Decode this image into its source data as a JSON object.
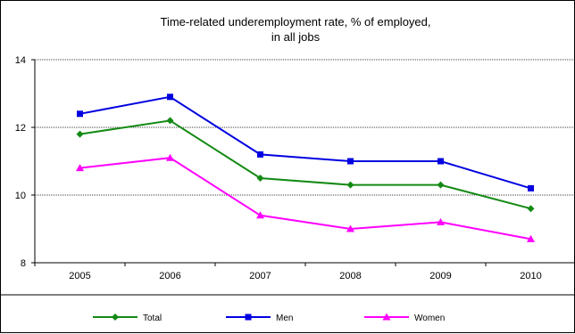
{
  "chart_data": {
    "type": "line",
    "title_lines": [
      "Time-related underemployment rate, %  of  employed,",
      "in all jobs"
    ],
    "xlabel": "",
    "ylabel": "",
    "categories": [
      "2005",
      "2006",
      "2007",
      "2008",
      "2009",
      "2010"
    ],
    "ylim": [
      8,
      14
    ],
    "yticks": [
      8,
      10,
      12,
      14
    ],
    "ytick_labels": [
      "8",
      "10",
      "12",
      "14"
    ],
    "grid": "horizontal dotted",
    "legend_position": "bottom",
    "series": [
      {
        "name": "Total",
        "color": "#138a13",
        "marker": "diamond",
        "values": [
          11.8,
          12.2,
          10.5,
          10.3,
          10.3,
          9.6
        ]
      },
      {
        "name": "Men",
        "color": "#0000e0",
        "marker": "square",
        "values": [
          12.4,
          12.9,
          11.2,
          11.0,
          11.0,
          10.2
        ]
      },
      {
        "name": "Women",
        "color": "#ff00ff",
        "marker": "triangle",
        "values": [
          10.8,
          11.1,
          9.4,
          9.0,
          9.2,
          8.7
        ]
      }
    ]
  }
}
